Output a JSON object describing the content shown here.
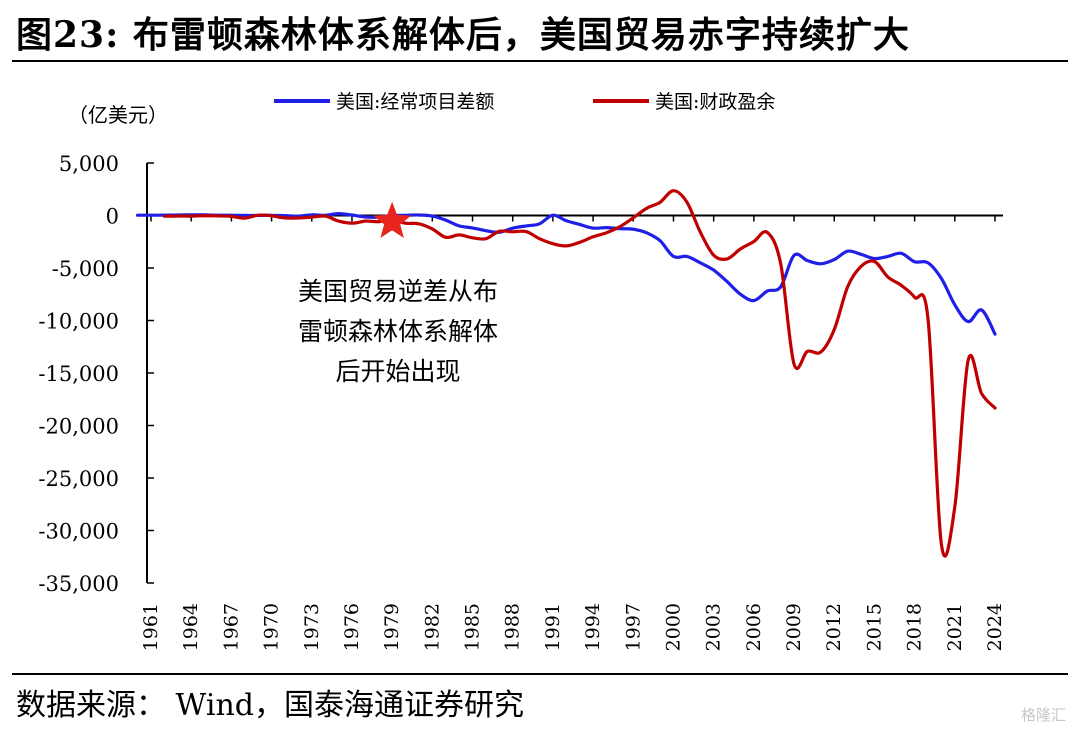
{
  "title": "图23: 布雷顿森林体系解体后，美国贸易赤字持续扩大",
  "source": "数据来源： Wind，国泰海通证券研究",
  "watermark": "格隆汇",
  "chart_data": {
    "type": "line",
    "unit_label": "（亿美元）",
    "ylim": [
      -35000,
      5000
    ],
    "yticks": [
      5000,
      0,
      -5000,
      -10000,
      -15000,
      -20000,
      -25000,
      -30000,
      -35000
    ],
    "ytick_labels": [
      "5,000",
      "0",
      "-5,000",
      "-10,000",
      "-15,000",
      "-20,000",
      "-25,000",
      "-30,000",
      "-35,000"
    ],
    "xlim": [
      1961,
      2024
    ],
    "xticks": [
      1961,
      1964,
      1967,
      1970,
      1973,
      1976,
      1979,
      1982,
      1985,
      1988,
      1991,
      1994,
      1997,
      2000,
      2003,
      2006,
      2009,
      2012,
      2015,
      2018,
      2021,
      2024
    ],
    "legend_position": "top",
    "grid": false,
    "annotation": {
      "lines": [
        "美国贸易逆差从布",
        "雷顿森林体系解体",
        "后开始出现"
      ],
      "marker": "star",
      "marker_x": 1979,
      "marker_y": -600,
      "marker_color": "#e8251c"
    },
    "series": [
      {
        "name": "美国:经常项目差额",
        "color": "#1f1fe8",
        "x": [
          1960,
          1961,
          1962,
          1963,
          1964,
          1965,
          1966,
          1967,
          1968,
          1969,
          1970,
          1971,
          1972,
          1973,
          1974,
          1975,
          1976,
          1977,
          1978,
          1979,
          1980,
          1981,
          1982,
          1983,
          1984,
          1985,
          1986,
          1987,
          1988,
          1989,
          1990,
          1991,
          1992,
          1993,
          1994,
          1995,
          1996,
          1997,
          1998,
          1999,
          2000,
          2001,
          2002,
          2003,
          2004,
          2005,
          2006,
          2007,
          2008,
          2009,
          2010,
          2011,
          2012,
          2013,
          2014,
          2015,
          2016,
          2017,
          2018,
          2019,
          2020,
          2021,
          2022,
          2023,
          2024
        ],
        "y": [
          28,
          30,
          34,
          44,
          68,
          54,
          31,
          26,
          6,
          4,
          23,
          -14,
          -58,
          71,
          20,
          181,
          43,
          -144,
          -150,
          0,
          23,
          50,
          -55,
          -440,
          -990,
          -1180,
          -1450,
          -1600,
          -1210,
          -990,
          -790,
          30,
          -500,
          -850,
          -1200,
          -1150,
          -1250,
          -1300,
          -1650,
          -2400,
          -3900,
          -3900,
          -4500,
          -5200,
          -6300,
          -7500,
          -8100,
          -7200,
          -6800,
          -3800,
          -4300,
          -4600,
          -4200,
          -3400,
          -3700,
          -4100,
          -3900,
          -3600,
          -4400,
          -4500,
          -6000,
          -8500,
          -10100,
          -9000,
          -11300
        ]
      },
      {
        "name": "美国:财政盈余",
        "color": "#c00000",
        "x": [
          1962,
          1963,
          1964,
          1965,
          1966,
          1967,
          1968,
          1969,
          1970,
          1971,
          1972,
          1973,
          1974,
          1975,
          1976,
          1977,
          1978,
          1979,
          1980,
          1981,
          1982,
          1983,
          1984,
          1985,
          1986,
          1987,
          1988,
          1989,
          1990,
          1991,
          1992,
          1993,
          1994,
          1995,
          1996,
          1997,
          1998,
          1999,
          2000,
          2001,
          2002,
          2003,
          2004,
          2005,
          2006,
          2007,
          2008,
          2009,
          2010,
          2011,
          2012,
          2013,
          2014,
          2015,
          2016,
          2017,
          2018,
          2019,
          2020,
          2021,
          2022,
          2023,
          2024
        ],
        "y": [
          -71,
          -48,
          -59,
          -14,
          -37,
          -87,
          -252,
          32,
          -28,
          -230,
          -234,
          -149,
          -61,
          -532,
          -737,
          -536,
          -591,
          -407,
          -738,
          -790,
          -1280,
          -2080,
          -1850,
          -2120,
          -2210,
          -1500,
          -1550,
          -1530,
          -2210,
          -2690,
          -2900,
          -2550,
          -2030,
          -1640,
          -1070,
          -220,
          690,
          1260,
          2360,
          1280,
          -1580,
          -3780,
          -4130,
          -3180,
          -2480,
          -1610,
          -4590,
          -14130,
          -12940,
          -13000,
          -10870,
          -6800,
          -4850,
          -4380,
          -5850,
          -6650,
          -7790,
          -9840,
          -31320,
          -27750,
          -13760,
          -16950,
          -18330
        ]
      }
    ]
  }
}
